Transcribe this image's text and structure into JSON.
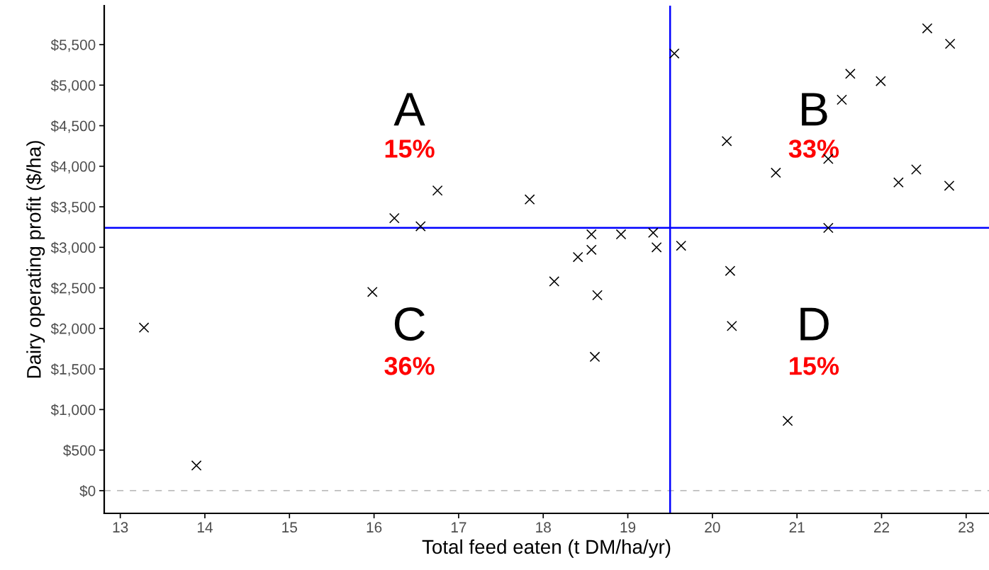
{
  "chart_data": {
    "type": "scatter",
    "xlabel": "Total feed eaten (t DM/ha/yr)",
    "ylabel": "Dairy operating profit ($/ha)",
    "marker": "cross",
    "grid": false,
    "legend": false,
    "series": [
      {
        "color": "#000000",
        "x": [
          13.28,
          13.9,
          15.98,
          16.24,
          16.55,
          16.75,
          17.84,
          18.13,
          18.41,
          18.57,
          18.57,
          18.64,
          18.61,
          18.92,
          19.3,
          19.34,
          19.55,
          19.63,
          20.17,
          20.21,
          20.23,
          20.75,
          20.89,
          21.37,
          21.37,
          21.53,
          21.63,
          21.99,
          22.2,
          22.41,
          22.54,
          22.81,
          22.8
        ],
        "values": [
          2010,
          310,
          2450,
          3360,
          3260,
          3700,
          3590,
          2580,
          2880,
          3160,
          2970,
          2410,
          1650,
          3160,
          3180,
          3000,
          5390,
          3020,
          4310,
          2710,
          2030,
          3920,
          860,
          3240,
          4090,
          4820,
          5140,
          5050,
          3800,
          3960,
          5700,
          5510,
          3760
        ]
      }
    ],
    "xlim": [
      12.81,
      23.27
    ],
    "xticks": [
      13,
      14,
      15,
      16,
      17,
      18,
      19,
      20,
      21,
      22,
      23
    ],
    "ylim": [
      -280,
      5980
    ],
    "yticks": [
      {
        "value": 0,
        "label": "$0"
      },
      {
        "value": 500,
        "label": "$500"
      },
      {
        "value": 1000,
        "label": "$1,000"
      },
      {
        "value": 1500,
        "label": "$1,500"
      },
      {
        "value": 2000,
        "label": "$2,000"
      },
      {
        "value": 2500,
        "label": "$2,500"
      },
      {
        "value": 3000,
        "label": "$3,000"
      },
      {
        "value": 3500,
        "label": "$3,500"
      },
      {
        "value": 4000,
        "label": "$4,000"
      },
      {
        "value": 4500,
        "label": "$4,500"
      },
      {
        "value": 5000,
        "label": "$5,000"
      },
      {
        "value": 5500,
        "label": "$5,500"
      }
    ],
    "ref_lines": [
      {
        "axis": "y",
        "value": 0,
        "color": "#bebebe",
        "line_style": "dashed"
      },
      {
        "axis": "x",
        "value": 19.5,
        "color": "#0000ff",
        "line_style": "solid"
      },
      {
        "axis": "y",
        "value": 3240,
        "color": "#0000ff",
        "line_style": "solid"
      }
    ],
    "annotations": [
      "A",
      "15%",
      "B",
      "33%",
      "C",
      "36%",
      "D",
      "15%"
    ]
  }
}
